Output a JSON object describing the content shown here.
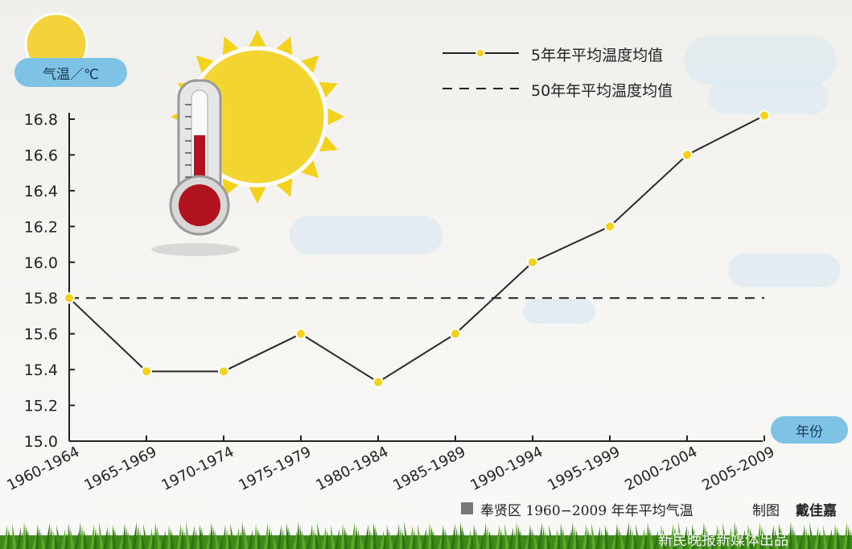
{
  "chart_data": {
    "type": "line",
    "ylabel": "气温／℃",
    "xlabel": "年份",
    "ylim": [
      15.0,
      16.8
    ],
    "yticks": [
      "15.0",
      "15.2",
      "15.4",
      "15.6",
      "15.8",
      "16.0",
      "16.2",
      "16.4",
      "16.6",
      "16.8"
    ],
    "categories": [
      "1960-1964",
      "1965-1969",
      "1970-1974",
      "1975-1979",
      "1980-1984",
      "1985-1989",
      "1990-1994",
      "1995-1999",
      "2000-2004",
      "2005-2009"
    ],
    "series": [
      {
        "name": "5年年平均温度均值",
        "style": "solid-with-markers",
        "values": [
          15.8,
          15.39,
          15.39,
          15.6,
          15.33,
          15.6,
          16.0,
          16.2,
          16.6,
          16.82
        ]
      },
      {
        "name": "50年年平均温度均值",
        "style": "dashed",
        "values": [
          15.8,
          15.8,
          15.8,
          15.8,
          15.8,
          15.8,
          15.8,
          15.8,
          15.8,
          15.8
        ]
      }
    ],
    "grid": false,
    "legend_position": "top-right",
    "colors": {
      "line": "#2a2a2a",
      "marker": "#f2d21a",
      "badge": "#7ec2e6"
    }
  },
  "caption": "奉贤区 1960−2009 年年平均气温",
  "credit_label": "制图",
  "credit_name": "戴佳嘉",
  "publisher": "新民晚报新媒体出品"
}
